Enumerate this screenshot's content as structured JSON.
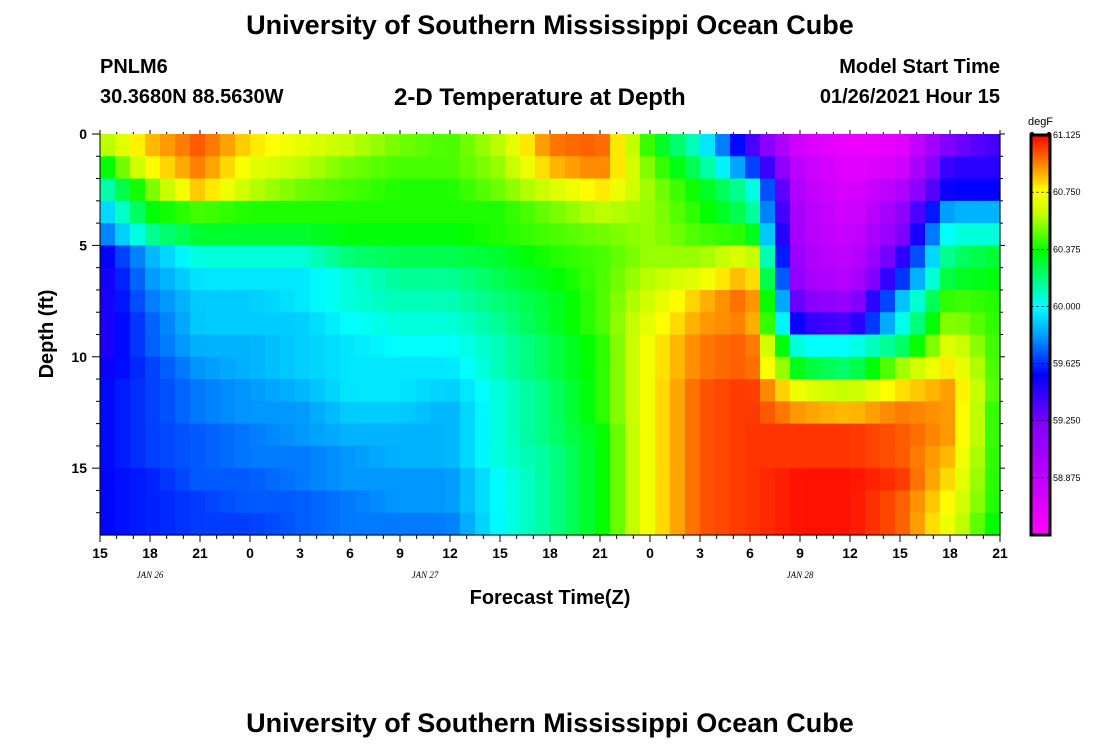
{
  "header": {
    "title_top": "University of Southern Mississippi Ocean Cube",
    "title_bottom": "University of Southern Mississippi Ocean Cube",
    "station": "PNLM6",
    "coords": "30.3680N 88.5630W",
    "subtitle": "2-D Temperature at Depth",
    "model_start_label": "Model Start Time",
    "model_start_value": "01/26/2021 Hour 15"
  },
  "chart_data": {
    "type": "heatmap",
    "title": "2-D Temperature at Depth",
    "xlabel": "Forecast Time(Z)",
    "ylabel": "Depth (ft)",
    "x_tick_labels": [
      "15",
      "18",
      "21",
      "0",
      "3",
      "6",
      "9",
      "12",
      "15",
      "18",
      "21",
      "0",
      "3",
      "6",
      "9",
      "12",
      "15",
      "18",
      "21"
    ],
    "date_labels": [
      {
        "label": "JAN  26",
        "at_tick": 1
      },
      {
        "label": "JAN  27",
        "at_tick": 6.5
      },
      {
        "label": "JAN  28",
        "at_tick": 14
      }
    ],
    "y_ticks": [
      0,
      5,
      10,
      15
    ],
    "ylim": [
      0,
      18
    ],
    "y_inverted": true,
    "colorbar": {
      "unit": "degF",
      "labels": [
        "61.125",
        "60.750",
        "60.375",
        "60.000",
        "59.625",
        "59.250",
        "58.875"
      ],
      "vmin": 58.5,
      "vmax": 61.125
    },
    "x_hours": [
      0,
      3,
      6,
      9,
      12,
      15,
      18,
      21,
      24,
      27,
      30,
      33,
      36,
      39,
      42,
      45,
      48,
      51,
      54
    ],
    "depths": [
      0.5,
      1.5,
      2.5,
      3.5,
      4.5,
      5.5,
      6.5,
      7.5,
      8.5,
      9.5,
      10.5,
      11.5,
      12.5,
      13.5,
      14.5,
      15.5,
      16.5,
      17.5
    ],
    "values": [
      [
        60.55,
        60.85,
        61.0,
        60.8,
        60.7,
        60.6,
        60.5,
        60.45,
        60.6,
        60.95,
        61.0,
        60.4,
        60.05,
        59.4,
        58.75,
        58.6,
        58.65,
        59.25,
        59.4
      ],
      [
        60.3,
        60.75,
        60.95,
        60.7,
        60.6,
        60.5,
        60.45,
        60.45,
        60.55,
        60.85,
        60.95,
        60.5,
        60.2,
        59.7,
        58.85,
        58.65,
        58.75,
        59.45,
        59.45
      ],
      [
        60.05,
        60.5,
        60.85,
        60.6,
        60.5,
        60.45,
        60.4,
        60.4,
        60.5,
        60.65,
        60.8,
        60.55,
        60.35,
        60.1,
        58.9,
        58.7,
        58.95,
        59.55,
        59.55
      ],
      [
        59.85,
        60.35,
        60.45,
        60.4,
        60.4,
        60.4,
        60.4,
        60.4,
        60.4,
        60.5,
        60.6,
        60.55,
        60.4,
        60.2,
        58.95,
        58.75,
        59.1,
        59.85,
        59.85
      ],
      [
        59.7,
        60.15,
        60.3,
        60.3,
        60.3,
        60.35,
        60.35,
        60.35,
        60.4,
        60.45,
        60.5,
        60.55,
        60.45,
        60.4,
        58.95,
        58.8,
        59.2,
        60.05,
        60.05
      ],
      [
        59.5,
        59.85,
        60.05,
        60.05,
        60.05,
        60.2,
        60.25,
        60.25,
        60.3,
        60.4,
        60.45,
        60.55,
        60.55,
        60.7,
        59.0,
        58.85,
        59.4,
        60.2,
        60.3
      ],
      [
        59.45,
        59.8,
        59.95,
        59.95,
        59.95,
        60.05,
        60.15,
        60.15,
        60.25,
        60.35,
        60.45,
        60.6,
        60.7,
        60.9,
        59.05,
        58.9,
        59.6,
        60.3,
        60.35
      ],
      [
        59.45,
        59.75,
        59.9,
        59.9,
        59.95,
        60.05,
        60.1,
        60.1,
        60.2,
        60.3,
        60.45,
        60.65,
        60.85,
        61.0,
        59.2,
        59.1,
        59.85,
        60.45,
        60.4
      ],
      [
        59.45,
        59.7,
        59.9,
        59.9,
        59.9,
        60.0,
        60.05,
        60.05,
        60.15,
        60.3,
        60.45,
        60.7,
        60.9,
        60.95,
        59.45,
        59.35,
        60.0,
        60.55,
        60.4
      ],
      [
        59.45,
        59.7,
        59.85,
        59.85,
        59.9,
        59.95,
        60.0,
        60.0,
        60.1,
        60.25,
        60.4,
        60.75,
        60.95,
        61.0,
        60.0,
        60.0,
        60.2,
        60.7,
        60.4
      ],
      [
        59.5,
        59.65,
        59.8,
        59.85,
        59.9,
        59.95,
        59.95,
        59.95,
        60.1,
        60.25,
        60.4,
        60.75,
        60.95,
        61.0,
        60.3,
        60.2,
        60.55,
        60.8,
        60.4
      ],
      [
        59.55,
        59.65,
        59.75,
        59.8,
        59.85,
        59.95,
        59.95,
        59.9,
        60.05,
        60.2,
        60.4,
        60.75,
        61.0,
        61.05,
        60.7,
        60.6,
        60.8,
        60.9,
        60.4
      ],
      [
        59.55,
        59.65,
        59.75,
        59.8,
        59.8,
        59.9,
        59.9,
        59.85,
        60.05,
        60.2,
        60.4,
        60.75,
        61.0,
        61.05,
        60.9,
        60.85,
        60.95,
        60.9,
        60.35
      ],
      [
        59.55,
        59.65,
        59.7,
        59.75,
        59.8,
        59.85,
        59.85,
        59.85,
        60.05,
        60.2,
        60.35,
        60.75,
        61.0,
        61.05,
        61.05,
        61.05,
        61.0,
        60.9,
        60.35
      ],
      [
        59.55,
        59.65,
        59.7,
        59.75,
        59.75,
        59.8,
        59.85,
        59.85,
        60.05,
        60.15,
        60.35,
        60.75,
        61.0,
        61.05,
        61.05,
        61.05,
        61.0,
        60.85,
        60.35
      ],
      [
        59.55,
        59.6,
        59.7,
        59.7,
        59.75,
        59.8,
        59.8,
        59.8,
        60.0,
        60.15,
        60.35,
        60.75,
        61.0,
        61.05,
        61.1,
        61.1,
        61.05,
        60.8,
        60.35
      ],
      [
        59.55,
        59.6,
        59.65,
        59.7,
        59.7,
        59.75,
        59.8,
        59.8,
        60.0,
        60.15,
        60.35,
        60.75,
        61.0,
        61.05,
        61.1,
        61.1,
        61.0,
        60.75,
        60.35
      ],
      [
        59.55,
        59.6,
        59.65,
        59.65,
        59.7,
        59.75,
        59.75,
        59.75,
        60.0,
        60.15,
        60.35,
        60.75,
        61.0,
        61.05,
        61.1,
        61.1,
        61.0,
        60.7,
        60.3
      ]
    ]
  }
}
